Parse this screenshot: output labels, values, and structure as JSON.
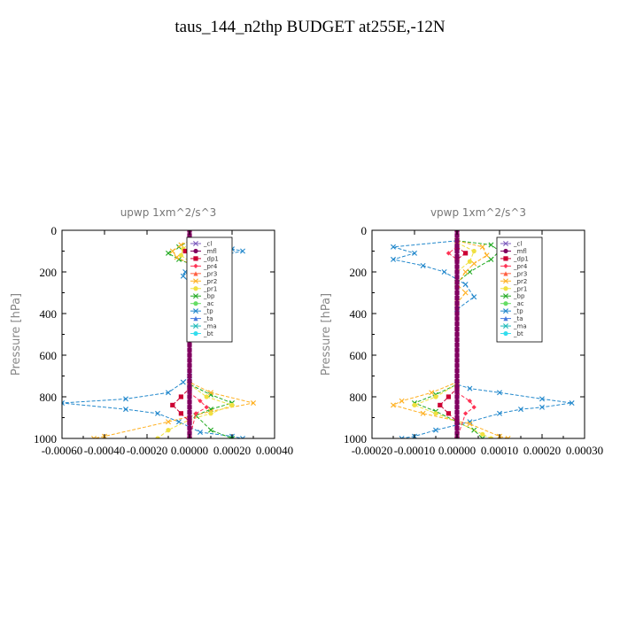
{
  "title": "taus_144_n2thp  BUDGET at255E,-12N",
  "legend_entries": [
    "_cl",
    "_mfl",
    "_dp1",
    "_pr4",
    "_pr3",
    "_pr2",
    "_pr1",
    "_bp",
    "_ac",
    "_tp",
    "_ta",
    "_ma",
    "_bt"
  ],
  "colors": {
    "_cl": "#7f5fbf",
    "_mfl": "#800060",
    "_dp1": "#cc0033",
    "_pr4": "#ff3355",
    "_pr3": "#ff5f40",
    "_pr2": "#ffb020",
    "_pr1": "#f0e040",
    "_bp": "#22aa22",
    "_ac": "#66dd66",
    "_tp": "#2288cc",
    "_ta": "#4477dd",
    "_ma": "#22bbbb",
    "_bt": "#33ddee"
  },
  "chart_data": [
    {
      "type": "line",
      "title": "upwp    1xm^2/s^3",
      "ylabel": "Pressure [hPa]",
      "xlim": [
        -0.0006,
        0.0004
      ],
      "ylim": [
        1000,
        0
      ],
      "xticks": [
        -0.0006,
        -0.0004,
        -0.0002,
        0.0,
        0.0002,
        0.0004
      ],
      "xtick_labels": [
        "-0.00060",
        "-0.00040",
        "-0.00020",
        "0.00000",
        "0.00020",
        "0.00040"
      ],
      "yticks": [
        0,
        200,
        400,
        600,
        800,
        1000
      ],
      "ytick_labels": [
        "0",
        "200",
        "400",
        "600",
        "800",
        "1000"
      ],
      "series": [
        {
          "name": "_tp",
          "points": [
            [
              0,
              50
            ],
            [
              5e-05,
              70
            ],
            [
              0.0002,
              90
            ],
            [
              0.00025,
              100
            ],
            [
              0.00015,
              120
            ],
            [
              5e-05,
              150
            ],
            [
              -2e-05,
              200
            ],
            [
              -3e-05,
              220
            ],
            [
              0,
              250
            ],
            [
              0,
              700
            ],
            [
              -3e-05,
              730
            ],
            [
              -0.0001,
              780
            ],
            [
              -0.0003,
              810
            ],
            [
              -0.0006,
              830
            ],
            [
              -0.0003,
              860
            ],
            [
              -0.00015,
              880
            ],
            [
              -5e-05,
              920
            ],
            [
              5e-05,
              970
            ],
            [
              0.0002,
              990
            ],
            [
              0.00025,
              1000
            ]
          ]
        },
        {
          "name": "_bp",
          "points": [
            [
              0,
              50
            ],
            [
              -5e-05,
              80
            ],
            [
              -0.0001,
              110
            ],
            [
              -5e-05,
              140
            ],
            [
              0,
              160
            ],
            [
              0,
              740
            ],
            [
              0.0001,
              790
            ],
            [
              0.0002,
              830
            ],
            [
              0.0001,
              860
            ],
            [
              3e-05,
              890
            ],
            [
              0.0001,
              960
            ],
            [
              0.0002,
              1000
            ]
          ]
        },
        {
          "name": "_pr2",
          "points": [
            [
              0,
              50
            ],
            [
              -4e-05,
              70
            ],
            [
              -8e-05,
              100
            ],
            [
              -6e-05,
              130
            ],
            [
              0,
              160
            ],
            [
              2e-05,
              200
            ],
            [
              2e-05,
              230
            ],
            [
              0,
              260
            ],
            [
              0,
              730
            ],
            [
              0.0001,
              780
            ],
            [
              0.0003,
              830
            ],
            [
              0.0001,
              870
            ],
            [
              -0.0001,
              920
            ],
            [
              -0.0004,
              990
            ],
            [
              -0.00045,
              1000
            ]
          ]
        },
        {
          "name": "_pr1",
          "points": [
            [
              0,
              60
            ],
            [
              -3e-05,
              90
            ],
            [
              -4e-05,
              120
            ],
            [
              0,
              150
            ],
            [
              0,
              740
            ],
            [
              8e-05,
              800
            ],
            [
              0.0002,
              840
            ],
            [
              0.0001,
              880
            ],
            [
              0,
              910
            ],
            [
              -0.0001,
              960
            ],
            [
              -0.00015,
              1000
            ]
          ]
        },
        {
          "name": "_dp1",
          "points": [
            [
              0,
              80
            ],
            [
              -2e-05,
              100
            ],
            [
              0,
              120
            ],
            [
              0,
              760
            ],
            [
              -4e-05,
              800
            ],
            [
              -8e-05,
              840
            ],
            [
              -4e-05,
              880
            ],
            [
              0,
              920
            ],
            [
              0,
              1000
            ]
          ]
        },
        {
          "name": "_pr4",
          "points": [
            [
              0,
              80
            ],
            [
              2e-05,
              100
            ],
            [
              0,
              120
            ],
            [
              0,
              780
            ],
            [
              5e-05,
              820
            ],
            [
              8e-05,
              850
            ],
            [
              3e-05,
              880
            ],
            [
              0,
              1000
            ]
          ]
        },
        {
          "name": "_mfl",
          "points": [
            [
              0,
              0
            ],
            [
              0,
              1000
            ]
          ]
        }
      ]
    },
    {
      "type": "line",
      "title": "vpwp    1xm^2/s^3",
      "ylabel": "Pressure [hPa]",
      "xlim": [
        -0.0002,
        0.0003
      ],
      "ylim": [
        1000,
        0
      ],
      "xticks": [
        -0.0002,
        -0.0001,
        0.0,
        0.0001,
        0.0002,
        0.0003
      ],
      "xtick_labels": [
        "-0.00020",
        "-0.00010",
        "0.00000",
        "0.00010",
        "0.00020",
        "0.00030"
      ],
      "yticks": [
        0,
        200,
        400,
        600,
        800,
        1000
      ],
      "ytick_labels": [
        "0",
        "200",
        "400",
        "600",
        "800",
        "1000"
      ],
      "series": [
        {
          "name": "_tp",
          "points": [
            [
              0,
              50
            ],
            [
              -0.00015,
              80
            ],
            [
              -0.0001,
              110
            ],
            [
              -0.00015,
              140
            ],
            [
              -8e-05,
              170
            ],
            [
              -3e-05,
              200
            ],
            [
              2e-05,
              260
            ],
            [
              4e-05,
              320
            ],
            [
              0,
              380
            ],
            [
              0,
              740
            ],
            [
              3e-05,
              760
            ],
            [
              0.0001,
              780
            ],
            [
              0.0002,
              810
            ],
            [
              0.00027,
              830
            ],
            [
              0.0002,
              850
            ],
            [
              0.00015,
              860
            ],
            [
              0.0001,
              880
            ],
            [
              3e-05,
              920
            ],
            [
              -5e-05,
              960
            ],
            [
              -0.0001,
              990
            ],
            [
              -0.00013,
              1000
            ]
          ]
        },
        {
          "name": "_bp",
          "points": [
            [
              0,
              50
            ],
            [
              8e-05,
              70
            ],
            [
              0.0001,
              100
            ],
            [
              8e-05,
              140
            ],
            [
              3e-05,
              200
            ],
            [
              0,
              250
            ],
            [
              0,
              740
            ],
            [
              -5e-05,
              790
            ],
            [
              -0.0001,
              830
            ],
            [
              -5e-05,
              870
            ],
            [
              0,
              920
            ],
            [
              4e-05,
              960
            ],
            [
              6e-05,
              1000
            ]
          ]
        },
        {
          "name": "_pr2",
          "points": [
            [
              0,
              50
            ],
            [
              6e-05,
              80
            ],
            [
              7e-05,
              120
            ],
            [
              4e-05,
              160
            ],
            [
              2e-05,
              200
            ],
            [
              0,
              260
            ],
            [
              2e-05,
              300
            ],
            [
              0,
              350
            ],
            [
              0,
              730
            ],
            [
              -6e-05,
              780
            ],
            [
              -0.00013,
              820
            ],
            [
              -0.00015,
              840
            ],
            [
              -8e-05,
              880
            ],
            [
              3e-05,
              930
            ],
            [
              0.0001,
              990
            ],
            [
              0.00012,
              1000
            ]
          ]
        },
        {
          "name": "_pr1",
          "points": [
            [
              0,
              60
            ],
            [
              4e-05,
              100
            ],
            [
              3e-05,
              150
            ],
            [
              0,
              200
            ],
            [
              0,
              740
            ],
            [
              -5e-05,
              800
            ],
            [
              -0.0001,
              840
            ],
            [
              -5e-05,
              880
            ],
            [
              0,
              920
            ],
            [
              6e-05,
              980
            ],
            [
              8e-05,
              1000
            ]
          ]
        },
        {
          "name": "_dp1",
          "points": [
            [
              0,
              80
            ],
            [
              2e-05,
              110
            ],
            [
              0,
              140
            ],
            [
              0,
              760
            ],
            [
              -2e-05,
              800
            ],
            [
              -4e-05,
              840
            ],
            [
              -2e-05,
              880
            ],
            [
              0,
              920
            ],
            [
              0,
              1000
            ]
          ]
        },
        {
          "name": "_pr4",
          "points": [
            [
              0,
              80
            ],
            [
              -2e-05,
              110
            ],
            [
              0,
              140
            ],
            [
              0,
              780
            ],
            [
              3e-05,
              820
            ],
            [
              4e-05,
              850
            ],
            [
              2e-05,
              880
            ],
            [
              0,
              1000
            ]
          ]
        },
        {
          "name": "_mfl",
          "points": [
            [
              0,
              0
            ],
            [
              0,
              1000
            ]
          ]
        }
      ]
    }
  ]
}
